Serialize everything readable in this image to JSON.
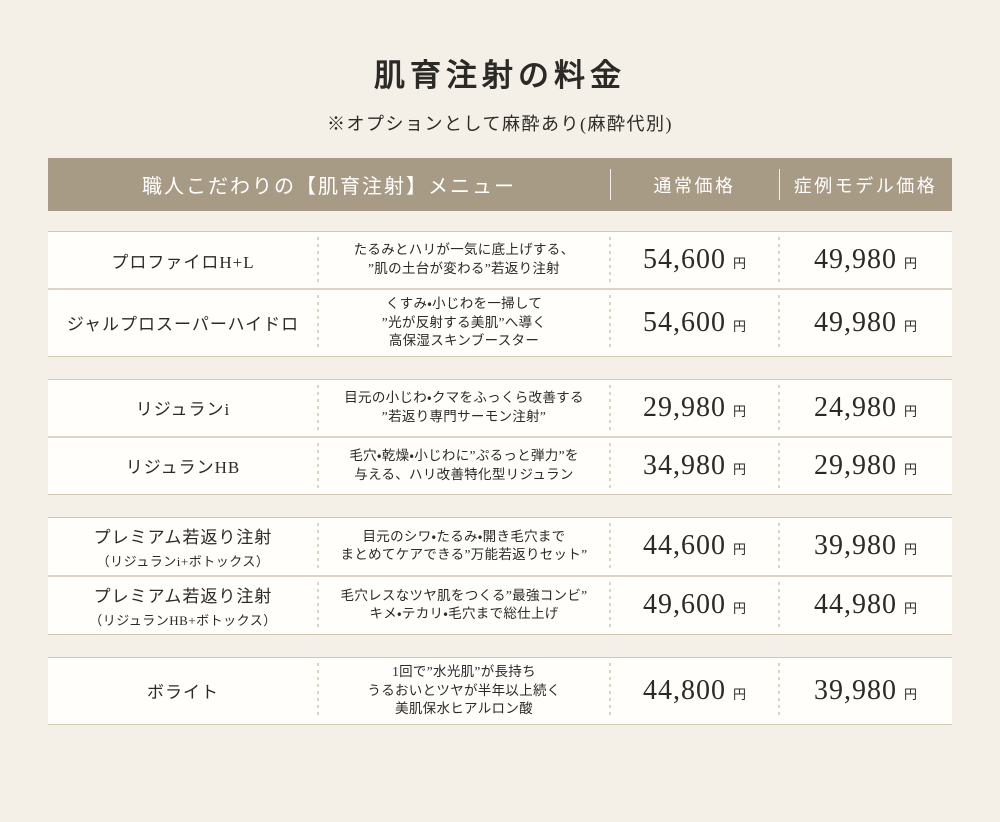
{
  "page": {
    "title": "肌育注射の料金",
    "subtitle": "※オプションとして麻酔あり(麻酔代別)"
  },
  "table": {
    "header": {
      "menu_label": "職人こだわりの【肌育注射】メニュー",
      "regular_price_label": "通常価格",
      "model_price_label": "症例モデル価格"
    },
    "currency_suffix": "円",
    "groups": [
      {
        "rows": [
          {
            "name": "プロファイロH+L",
            "desc_lines": [
              "たるみとハリが一気に底上げする、",
              "”肌の土台が変わる”若返り注射"
            ],
            "regular_price": "54,600",
            "model_price": "49,980"
          },
          {
            "name": "ジャルプロスーパーハイドロ",
            "desc_lines": [
              "くすみ・小じわを一掃して",
              "”光が反射する美肌”へ導く",
              "高保湿スキンブースター"
            ],
            "regular_price": "54,600",
            "model_price": "49,980"
          }
        ]
      },
      {
        "rows": [
          {
            "name": "リジュランi",
            "desc_lines": [
              "目元の小じわ・クマをふっくら改善する",
              "”若返り専門サーモン注射”"
            ],
            "regular_price": "29,980",
            "model_price": "24,980"
          },
          {
            "name": "リジュランHB",
            "desc_lines": [
              "毛穴・乾燥・小じわに”ぷるっと弾力”を",
              "与える、ハリ改善特化型リジュラン"
            ],
            "regular_price": "34,980",
            "model_price": "29,980"
          }
        ]
      },
      {
        "rows": [
          {
            "name": "プレミアム若返り注射",
            "name_sub": "（リジュランi+ボトックス）",
            "desc_lines": [
              "目元のシワ・たるみ・開き毛穴まで",
              "まとめてケアできる”万能若返りセット”"
            ],
            "regular_price": "44,600",
            "model_price": "39,980"
          },
          {
            "name": "プレミアム若返り注射",
            "name_sub": "（リジュランHB+ボトックス）",
            "desc_lines": [
              "毛穴レスなツヤ肌をつくる”最強コンビ”",
              "キメ・テカリ・毛穴まで総仕上げ"
            ],
            "regular_price": "49,600",
            "model_price": "44,980"
          }
        ]
      },
      {
        "rows": [
          {
            "name": "ボライト",
            "desc_lines": [
              "1回で”水光肌”が長持ち",
              "うるおいとツヤが半年以上続く",
              "美肌保水ヒアルロン酸"
            ],
            "regular_price": "44,800",
            "model_price": "39,980"
          }
        ]
      }
    ]
  },
  "colors": {
    "header_bar": "#a89b85",
    "page_bg": "#f4f0e7",
    "row_bg": "#fffefb",
    "solid_border": "#d2c8b4",
    "dashed_divider": "#ddd3c2",
    "text": "#2b2a27",
    "header_text": "#ffffff"
  }
}
